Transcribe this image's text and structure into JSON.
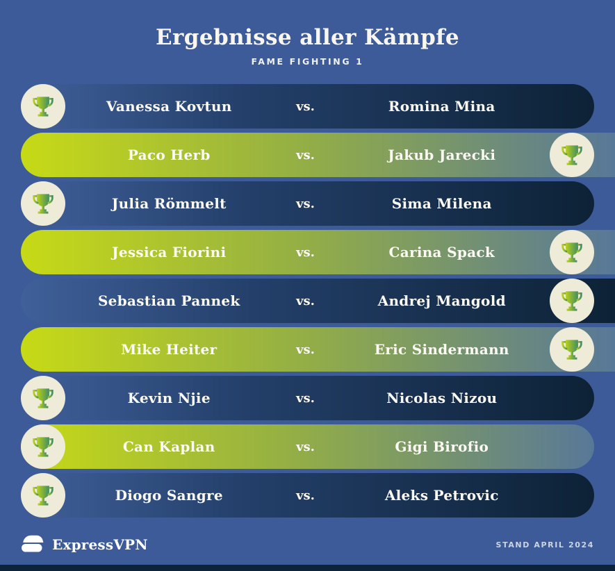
{
  "header": {
    "title": "Ergebnisse aller Kämpfe",
    "subtitle": "FAME FIGHTING 1"
  },
  "vs_label": "vs.",
  "chart_data": {
    "type": "table",
    "title": "Ergebnisse aller Kämpfe",
    "subtitle": "FAME FIGHTING 1",
    "columns": [
      "fighter_left",
      "fighter_right",
      "winner"
    ],
    "rows": [
      {
        "fighter_left": "Vanessa Kovtun",
        "fighter_right": "Romina Mina",
        "winner": "left"
      },
      {
        "fighter_left": "Paco Herb",
        "fighter_right": "Jakub Jarecki",
        "winner": "right"
      },
      {
        "fighter_left": "Julia Römmelt",
        "fighter_right": "Sima Milena",
        "winner": "left"
      },
      {
        "fighter_left": "Jessica Fiorini",
        "fighter_right": "Carina Spack",
        "winner": "right"
      },
      {
        "fighter_left": "Sebastian Pannek",
        "fighter_right": "Andrej Mangold",
        "winner": "right"
      },
      {
        "fighter_left": "Mike Heiter",
        "fighter_right": "Eric Sindermann",
        "winner": "right"
      },
      {
        "fighter_left": "Kevin Njie",
        "fighter_right": "Nicolas Nizou",
        "winner": "left"
      },
      {
        "fighter_left": "Can Kaplan",
        "fighter_right": "Gigi Birofio",
        "winner": "left"
      },
      {
        "fighter_left": "Diogo Sangre",
        "fighter_right": "Aleks Petrovic",
        "winner": "left"
      }
    ]
  },
  "footer": {
    "brand": "ExpressVPN",
    "stand_label": "STAND APRIL 2024"
  },
  "icons": {
    "winner_badge": "trophy-icon",
    "brand_mark": "expressvpn-logo"
  },
  "colors": {
    "background": "#3d5b98",
    "navy_row_start": "#40609a",
    "navy_row_end": "#0d2236",
    "green_row_start": "#c7da16",
    "green_row_end": "#587898",
    "trophy_circle": "#eeebd8",
    "trophy_gradient_start": "#b9d01b",
    "trophy_gradient_end": "#418e62",
    "bottom_bar": "#0d2339",
    "text": "#fbfaf3"
  }
}
